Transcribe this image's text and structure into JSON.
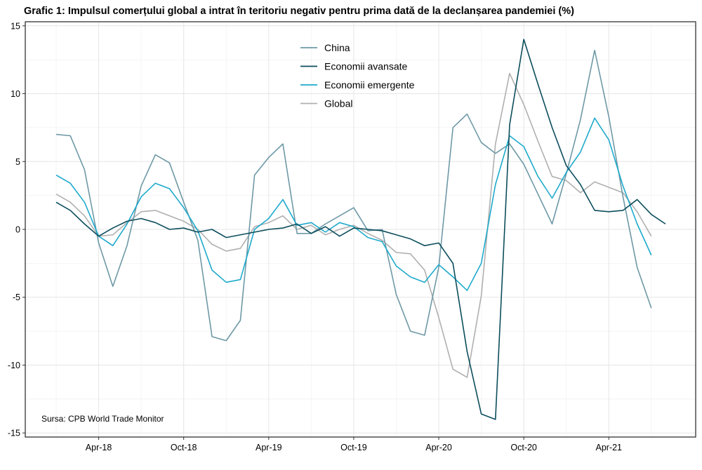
{
  "title": "Grafic 1: Impulsul comerțului global a intrat în teritoriu negativ pentru prima dată de la declanșarea pandemiei (%)",
  "source": "Sursa: CPB World Trade Monitor",
  "chart_data": {
    "type": "line",
    "title": "Grafic 1: Impulsul comerțului global a intrat în teritoriu negativ pentru prima dată de la declanșarea pandemiei (%)",
    "x": [
      "2018-01",
      "2018-02",
      "2018-03",
      "2018-04",
      "2018-05",
      "2018-06",
      "2018-07",
      "2018-08",
      "2018-09",
      "2018-10",
      "2018-11",
      "2018-12",
      "2019-01",
      "2019-02",
      "2019-03",
      "2019-04",
      "2019-05",
      "2019-06",
      "2019-07",
      "2019-08",
      "2019-09",
      "2019-10",
      "2019-11",
      "2019-12",
      "2020-01",
      "2020-02",
      "2020-03",
      "2020-04",
      "2020-05",
      "2020-06",
      "2020-07",
      "2020-08",
      "2020-09",
      "2020-10",
      "2020-11",
      "2020-12",
      "2021-01",
      "2021-02",
      "2021-03",
      "2021-04",
      "2021-05",
      "2021-06",
      "2021-07",
      "2021-08"
    ],
    "x_tick_labels": [
      "Apr-18",
      "Oct-18",
      "Apr-19",
      "Oct-19",
      "Apr-20",
      "Oct-20",
      "Apr-21"
    ],
    "x_tick_values": [
      "2018-04",
      "2018-10",
      "2019-04",
      "2019-10",
      "2020-04",
      "2020-10",
      "2021-04"
    ],
    "y_ticks": [
      15,
      10,
      5,
      0,
      -5,
      -10,
      -15
    ],
    "ylim": [
      -15.3,
      15.3
    ],
    "grid": true,
    "legend_position": "top-center",
    "series": [
      {
        "name": "China",
        "color": "#6e99a6",
        "values": [
          7.0,
          6.9,
          4.4,
          -1.0,
          -4.2,
          -1.2,
          3.2,
          5.5,
          4.9,
          2.0,
          -0.8,
          -7.9,
          -8.2,
          -6.7,
          4.0,
          5.3,
          6.3,
          -0.3,
          -0.3,
          0.4,
          1.0,
          1.6,
          -0.1,
          0.0,
          -4.8,
          -7.5,
          -7.8,
          -2.8,
          7.5,
          8.5,
          6.4,
          5.6,
          6.3,
          4.8,
          2.6,
          0.4,
          4.1,
          8.1,
          13.2,
          8.3,
          2.4,
          -2.8,
          -5.8,
          null
        ]
      },
      {
        "name": "Economii avansate",
        "color": "#0c4e5c",
        "values": [
          2.0,
          1.4,
          0.4,
          -0.5,
          0.1,
          0.6,
          0.8,
          0.5,
          0.0,
          0.1,
          -0.2,
          0.0,
          -0.6,
          -0.4,
          -0.2,
          0.0,
          0.1,
          0.4,
          -0.3,
          0.2,
          -0.5,
          0.1,
          0.0,
          -0.1,
          -0.4,
          -0.7,
          -1.2,
          -1.0,
          -2.5,
          -9.0,
          -13.6,
          -14.0,
          7.7,
          14.0,
          10.7,
          7.5,
          4.7,
          3.3,
          1.4,
          1.3,
          1.4,
          2.2,
          1.1,
          0.4
        ]
      },
      {
        "name": "Economii emergente",
        "color": "#1eaacc",
        "values": [
          4.0,
          3.4,
          2.0,
          -0.5,
          -1.2,
          0.4,
          2.4,
          3.4,
          3.0,
          1.6,
          -0.1,
          -3.0,
          -3.9,
          -3.7,
          0.0,
          0.8,
          2.2,
          0.3,
          0.5,
          -0.2,
          0.5,
          0.2,
          -0.6,
          -0.9,
          -2.7,
          -3.5,
          -3.9,
          -2.6,
          -3.5,
          -4.5,
          -2.5,
          3.3,
          6.9,
          6.1,
          3.9,
          2.3,
          4.2,
          5.7,
          8.2,
          6.6,
          3.2,
          0.4,
          -1.9,
          null
        ]
      },
      {
        "name": "Global",
        "color": "#b0b0b0",
        "values": [
          2.6,
          2.0,
          1.0,
          -0.5,
          -0.4,
          0.5,
          1.3,
          1.4,
          1.0,
          0.6,
          0.0,
          -1.1,
          -1.6,
          -1.4,
          0.2,
          0.5,
          1.0,
          0.0,
          0.3,
          -0.4,
          0.0,
          0.3,
          -0.3,
          -0.8,
          -1.7,
          -1.8,
          -3.0,
          -6.5,
          -10.3,
          -10.9,
          -4.9,
          6.3,
          11.5,
          9.2,
          6.5,
          3.9,
          3.6,
          2.7,
          3.5,
          3.1,
          2.7,
          1.3,
          -0.5,
          null
        ]
      }
    ]
  }
}
